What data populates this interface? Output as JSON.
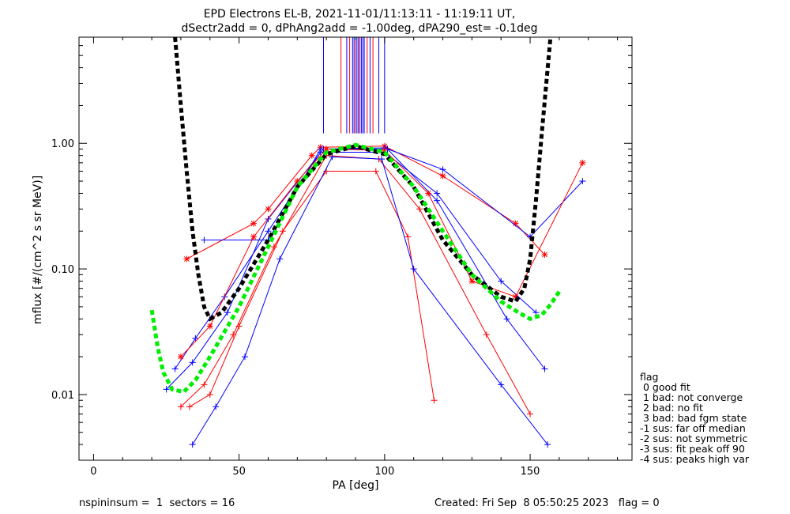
{
  "chart_data": {
    "type": "line",
    "title_line1": "EPD Electrons EL-B, 2021-11-01/11:13:11 - 11:19:11 UT,",
    "title_line2": "dSectr2add = 0, dPhAng2add = -1.00deg, dPA290_est=  -0.1deg",
    "xlabel": "PA [deg]",
    "ylabel": "mflux [#/(cm^2 s sr MeV)]",
    "xlim": [
      -5,
      185
    ],
    "ylim": [
      0.003,
      7
    ],
    "yscale": "log",
    "x_ticks": [
      0,
      50,
      100,
      150
    ],
    "x_tick_labels": [
      "0",
      "50",
      "100",
      "150"
    ],
    "y_ticks": [
      0.01,
      0.1,
      1.0
    ],
    "y_tick_labels": [
      "0.01",
      "0.10",
      "1.00"
    ],
    "series": [
      {
        "color": "#ff0000",
        "marker": "asterisk",
        "x": [
          32,
          55,
          60,
          75,
          78,
          100,
          120,
          145,
          155
        ],
        "y": [
          0.12,
          0.23,
          0.3,
          0.8,
          0.93,
          0.95,
          0.55,
          0.23,
          0.13
        ]
      },
      {
        "color": "#0000ff",
        "marker": "plus",
        "x": [
          28,
          35,
          45,
          60,
          78,
          100,
          118,
          140,
          152
        ],
        "y": [
          0.016,
          0.028,
          0.06,
          0.2,
          0.85,
          0.85,
          0.4,
          0.08,
          0.045
        ]
      },
      {
        "color": "#ff0000",
        "marker": "plus",
        "x": [
          30,
          38,
          48,
          62,
          80,
          98,
          112,
          135,
          150
        ],
        "y": [
          0.008,
          0.012,
          0.03,
          0.15,
          0.8,
          0.75,
          0.3,
          0.03,
          0.007
        ]
      },
      {
        "color": "#0000ff",
        "marker": "plus",
        "x": [
          25,
          34,
          46,
          60,
          79,
          101,
          118,
          142,
          155
        ],
        "y": [
          0.011,
          0.018,
          0.045,
          0.25,
          0.9,
          0.9,
          0.35,
          0.04,
          0.016
        ]
      },
      {
        "color": "#ff0000",
        "marker": "plus",
        "x": [
          33,
          40,
          50,
          65,
          80,
          97,
          108,
          117
        ],
        "y": [
          0.008,
          0.01,
          0.035,
          0.2,
          0.6,
          0.6,
          0.18,
          0.009
        ]
      },
      {
        "color": "#0000ff",
        "marker": "plus",
        "x": [
          34,
          42,
          52,
          64,
          82,
          99,
          110,
          140,
          156
        ],
        "y": [
          0.004,
          0.008,
          0.02,
          0.12,
          0.78,
          0.75,
          0.1,
          0.012,
          0.004
        ]
      },
      {
        "color": "#0000ff",
        "marker": "plus",
        "x": [
          38,
          60,
          78,
          100,
          120,
          150,
          168
        ],
        "y": [
          0.17,
          0.17,
          0.9,
          0.92,
          0.62,
          0.18,
          0.5
        ]
      },
      {
        "color": "#ff0000",
        "marker": "asterisk",
        "x": [
          30,
          40,
          55,
          70,
          80,
          100,
          115,
          130,
          145,
          168
        ],
        "y": [
          0.02,
          0.035,
          0.18,
          0.5,
          0.9,
          0.88,
          0.4,
          0.08,
          0.06,
          0.7
        ]
      }
    ],
    "fit_curves": [
      {
        "color": "#000000",
        "style": "dashed",
        "x": [
          28,
          30,
          32,
          34,
          36,
          38,
          40,
          44,
          50,
          60,
          70,
          80,
          90,
          100,
          110,
          120,
          130,
          140,
          145,
          148,
          150,
          152,
          154,
          157
        ],
        "y": [
          7,
          2.0,
          0.6,
          0.2,
          0.09,
          0.05,
          0.04,
          0.045,
          0.07,
          0.17,
          0.45,
          0.82,
          0.95,
          0.82,
          0.45,
          0.17,
          0.09,
          0.06,
          0.055,
          0.07,
          0.12,
          0.35,
          1.2,
          7
        ]
      },
      {
        "color": "#00ee00",
        "style": "dashed",
        "x": [
          20,
          22,
          24,
          27,
          31,
          35,
          40,
          50,
          60,
          70,
          80,
          90,
          100,
          110,
          120,
          130,
          140,
          146,
          150,
          154,
          157,
          160
        ],
        "y": [
          0.047,
          0.024,
          0.015,
          0.011,
          0.0105,
          0.013,
          0.02,
          0.05,
          0.15,
          0.45,
          0.85,
          0.97,
          0.85,
          0.45,
          0.2,
          0.09,
          0.055,
          0.045,
          0.04,
          0.043,
          0.052,
          0.066
        ]
      }
    ],
    "vertical_lines": {
      "x": [
        79,
        85,
        87,
        88,
        89,
        89.5,
        90,
        90.5,
        91,
        91.5,
        92,
        92.5,
        93,
        94,
        95,
        96,
        98,
        100
      ],
      "colors": [
        "#0000ff",
        "#ff0000",
        "#0000ff",
        "#ff0000",
        "#0000ff",
        "#0000ff",
        "#ff0000",
        "#0000ff",
        "#0000ff",
        "#ff0000",
        "#0000ff",
        "#0000ff",
        "#0000ff",
        "#ff0000",
        "#0000ff",
        "#ff0000",
        "#0000ff",
        "#0000ff"
      ],
      "y_bottom": 1.2
    },
    "legend": {
      "position": "right",
      "title": "flag",
      "entries": [
        " 0 good fit",
        " 1 bad: not converge",
        " 2 bad: no fit",
        " 3 bad: bad fgm state",
        "-1 sus: far off median",
        "-2 sus: not symmetric",
        "-3 sus: fit peak off 90",
        "-4 sus: peaks high var"
      ]
    },
    "footer_left": "nspininsum =  1  sectors = 16",
    "footer_right": "Created: Fri Sep  8 05:50:25 2023   flag = 0"
  }
}
